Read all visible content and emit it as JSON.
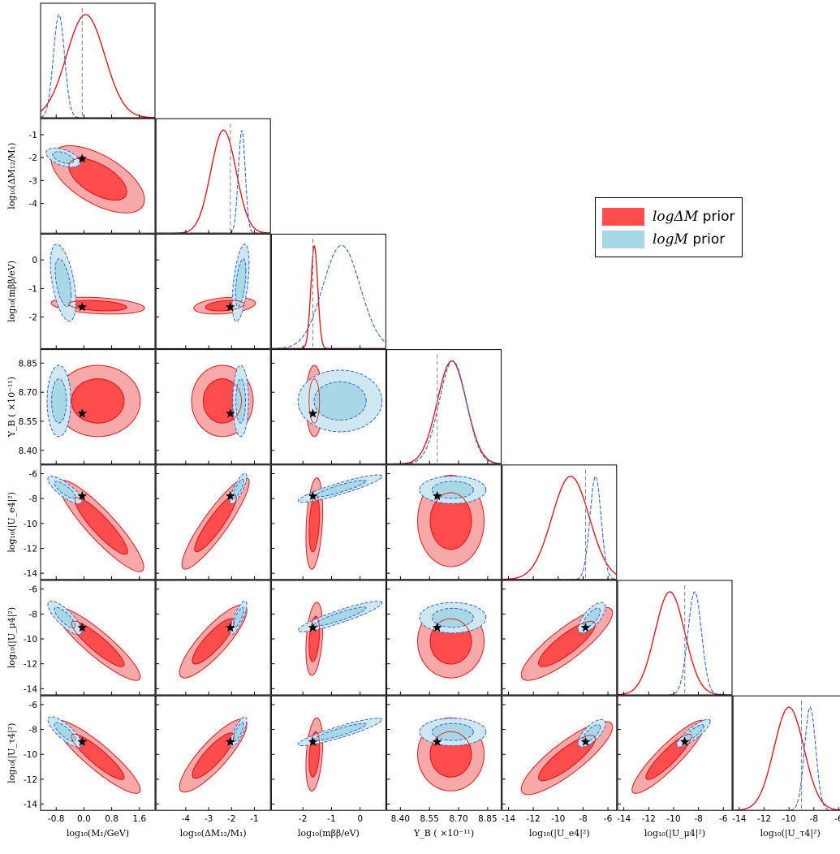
{
  "colors": {
    "red_outer": "#f7a8a8",
    "red_inner": "#ff4d4d",
    "red_line": "#e31a1c",
    "blue_outer": "#cfe7f0",
    "blue_inner": "#a8d8e6",
    "blue_line": "#3366dd",
    "truth_line": "#808080"
  },
  "legend": {
    "items": [
      {
        "math": "logΔM",
        "suffix": " prior",
        "color_key": "red_inner"
      },
      {
        "math": "logM",
        "suffix": " prior",
        "color_key": "blue_inner"
      }
    ]
  },
  "chart_data": {
    "type": "corner",
    "series": [
      {
        "name": "logΔM prior",
        "key": "red"
      },
      {
        "name": "logM prior",
        "key": "blue"
      }
    ],
    "parameters": [
      {
        "xlabel": "log₁₀(M₁/GeV)",
        "ylabel": "",
        "range": [
          -1.25,
          2.05
        ],
        "ticks": [
          "-0.8",
          "0.0",
          "0.8",
          "1.6"
        ],
        "tick_values": [
          -0.8,
          0.0,
          0.8,
          1.6
        ],
        "truth": -0.05
      },
      {
        "xlabel": "log₁₀(ΔM₁₂/M₁)",
        "ylabel": "log₁₀(ΔM₁₂/M₁)",
        "range": [
          -5.3,
          -0.3
        ],
        "ticks": [
          "-4",
          "-3",
          "-2",
          "-1"
        ],
        "tick_values": [
          -4,
          -3,
          -2,
          -1
        ],
        "truth": -2.05
      },
      {
        "xlabel": "log₁₀(mββ/eV)",
        "ylabel": "log₁₀(mββ/eV)",
        "range": [
          -3.1,
          0.9
        ],
        "ticks": [
          "-2",
          "-1",
          "0"
        ],
        "tick_values": [
          -2,
          -1,
          0
        ],
        "truth": -1.65
      },
      {
        "xlabel": "Y_B ( ×10⁻¹¹)",
        "ylabel": "Y_B ( ×10⁻¹¹)",
        "range": [
          8.33,
          8.92
        ],
        "ticks": [
          "8.40",
          "8.55",
          "8.70",
          "8.85"
        ],
        "tick_values": [
          8.4,
          8.55,
          8.7,
          8.85
        ],
        "truth": 8.59
      },
      {
        "xlabel": "log₁₀(|U_e4|²)",
        "ylabel": "log₁₀(|U_e4|²)",
        "range": [
          -14.5,
          -5.3
        ],
        "ticks": [
          "-14",
          "-12",
          "-10",
          "-8",
          "-6"
        ],
        "tick_values": [
          -14,
          -12,
          -10,
          -8,
          -6
        ],
        "truth": -7.8
      },
      {
        "xlabel": "log₁₀(|U_μ4|²)",
        "ylabel": "log₁₀(|U_μ4|²)",
        "range": [
          -14.5,
          -5.3
        ],
        "ticks": [
          "-14",
          "-12",
          "-10",
          "-8",
          "-6"
        ],
        "tick_values": [
          -14,
          -12,
          -10,
          -8,
          -6
        ],
        "truth": -9.1
      },
      {
        "xlabel": "log₁₀(|U_τ4|²)",
        "ylabel": "log₁₀(|U_τ4|²)",
        "range": [
          -14.5,
          -5.3
        ],
        "ticks": [
          "-14",
          "-12",
          "-10",
          "-8",
          "-6"
        ],
        "tick_values": [
          -14,
          -12,
          -10,
          -8,
          -6
        ],
        "truth": -9.0
      }
    ],
    "marginals": [
      {
        "red": {
          "mean": 0.05,
          "sd": 0.55
        },
        "blue": {
          "mean": -0.72,
          "sd": 0.16
        }
      },
      {
        "red": {
          "mean": -2.35,
          "sd": 0.55
        },
        "blue": {
          "mean": -1.55,
          "sd": 0.15
        }
      },
      {
        "red": {
          "mean": -1.6,
          "sd": 0.12
        },
        "blue": {
          "mean": -0.65,
          "sd": 0.65
        }
      },
      {
        "red": {
          "mean": 8.665,
          "sd": 0.075
        },
        "blue": {
          "mean": 8.67,
          "sd": 0.07
        }
      },
      {
        "red": {
          "mean": -9.0,
          "sd": 1.5
        },
        "blue": {
          "mean": -7.0,
          "sd": 0.45
        }
      },
      {
        "red": {
          "mean": -10.3,
          "sd": 1.2
        },
        "blue": {
          "mean": -8.3,
          "sd": 0.55
        }
      },
      {
        "red": {
          "mean": -10.0,
          "sd": 1.2
        },
        "blue": {
          "mean": -8.3,
          "sd": 0.45
        }
      }
    ],
    "contours": [
      {
        "row": 1,
        "col": 0,
        "red": {
          "center": [
            0.4,
            -2.95
          ],
          "sd": [
            0.55,
            0.6
          ],
          "rho": -0.6
        },
        "blue": {
          "center": [
            -0.6,
            -2.0
          ],
          "sd": [
            0.2,
            0.17
          ],
          "rho": -0.5
        }
      },
      {
        "row": 2,
        "col": 0,
        "red": {
          "center": [
            0.4,
            -1.6
          ],
          "sd": [
            0.55,
            0.12
          ],
          "rho": -0.3
        },
        "blue": {
          "center": [
            -0.6,
            -0.8
          ],
          "sd": [
            0.15,
            0.55
          ],
          "rho": -0.5
        }
      },
      {
        "row": 2,
        "col": 1,
        "red": {
          "center": [
            -2.3,
            -1.6
          ],
          "sd": [
            0.55,
            0.12
          ],
          "rho": 0.3
        },
        "blue": {
          "center": [
            -1.6,
            -0.8
          ],
          "sd": [
            0.15,
            0.55
          ],
          "rho": 0.5
        }
      },
      {
        "row": 3,
        "col": 0,
        "red": {
          "center": [
            0.4,
            8.655
          ],
          "sd": [
            0.5,
            0.075
          ],
          "rho": 0
        },
        "blue": {
          "center": [
            -0.72,
            8.655
          ],
          "sd": [
            0.14,
            0.075
          ],
          "rho": 0
        }
      },
      {
        "row": 3,
        "col": 1,
        "red": {
          "center": [
            -2.4,
            8.655
          ],
          "sd": [
            0.55,
            0.075
          ],
          "rho": 0
        },
        "blue": {
          "center": [
            -1.6,
            8.655
          ],
          "sd": [
            0.14,
            0.075
          ],
          "rho": 0
        }
      },
      {
        "row": 3,
        "col": 2,
        "red": {
          "center": [
            -1.6,
            8.655
          ],
          "sd": [
            0.12,
            0.075
          ],
          "rho": 0
        },
        "blue": {
          "center": [
            -0.7,
            8.655
          ],
          "sd": [
            0.6,
            0.065
          ],
          "rho": 0
        }
      },
      {
        "row": 4,
        "col": 0,
        "red": {
          "center": [
            0.5,
            -10.2
          ],
          "sd": [
            0.5,
            1.5
          ],
          "rho": -0.9
        },
        "blue": {
          "center": [
            -0.55,
            -7.3
          ],
          "sd": [
            0.2,
            0.45
          ],
          "rho": -0.8
        }
      },
      {
        "row": 4,
        "col": 1,
        "red": {
          "center": [
            -2.7,
            -10.0
          ],
          "sd": [
            0.6,
            1.5
          ],
          "rho": 0.9
        },
        "blue": {
          "center": [
            -1.7,
            -7.2
          ],
          "sd": [
            0.15,
            0.5
          ],
          "rho": 0.8
        }
      },
      {
        "row": 4,
        "col": 2,
        "red": {
          "center": [
            -1.6,
            -10.0
          ],
          "sd": [
            0.12,
            1.5
          ],
          "rho": 0.3
        },
        "blue": {
          "center": [
            -0.7,
            -7.2
          ],
          "sd": [
            0.6,
            0.45
          ],
          "rho": 0.9
        }
      },
      {
        "row": 4,
        "col": 3,
        "red": {
          "center": [
            8.66,
            -9.8
          ],
          "sd": [
            0.07,
            1.5
          ],
          "rho": 0
        },
        "blue": {
          "center": [
            8.67,
            -7.3
          ],
          "sd": [
            0.07,
            0.45
          ],
          "rho": 0
        }
      },
      {
        "row": 5,
        "col": 0,
        "red": {
          "center": [
            0.4,
            -10.4
          ],
          "sd": [
            0.5,
            1.2
          ],
          "rho": -0.9
        },
        "blue": {
          "center": [
            -0.55,
            -8.3
          ],
          "sd": [
            0.2,
            0.55
          ],
          "rho": -0.8
        }
      },
      {
        "row": 5,
        "col": 1,
        "red": {
          "center": [
            -2.8,
            -10.2
          ],
          "sd": [
            0.6,
            1.2
          ],
          "rho": 0.85
        },
        "blue": {
          "center": [
            -1.7,
            -8.3
          ],
          "sd": [
            0.15,
            0.55
          ],
          "rho": 0.8
        }
      },
      {
        "row": 5,
        "col": 2,
        "red": {
          "center": [
            -1.6,
            -10.0
          ],
          "sd": [
            0.12,
            1.2
          ],
          "rho": 0.3
        },
        "blue": {
          "center": [
            -0.7,
            -8.2
          ],
          "sd": [
            0.6,
            0.5
          ],
          "rho": 0.9
        }
      },
      {
        "row": 5,
        "col": 3,
        "red": {
          "center": [
            8.66,
            -10.2
          ],
          "sd": [
            0.07,
            1.2
          ],
          "rho": 0
        },
        "blue": {
          "center": [
            8.67,
            -8.3
          ],
          "sd": [
            0.07,
            0.5
          ],
          "rho": 0
        }
      },
      {
        "row": 5,
        "col": 4,
        "red": {
          "center": [
            -9.3,
            -10.4
          ],
          "sd": [
            1.5,
            1.2
          ],
          "rho": 0.85
        },
        "blue": {
          "center": [
            -7.3,
            -8.3
          ],
          "sd": [
            0.45,
            0.5
          ],
          "rho": 0.7
        }
      },
      {
        "row": 6,
        "col": 0,
        "red": {
          "center": [
            0.4,
            -10.2
          ],
          "sd": [
            0.5,
            1.2
          ],
          "rho": -0.9
        },
        "blue": {
          "center": [
            -0.55,
            -8.2
          ],
          "sd": [
            0.2,
            0.5
          ],
          "rho": -0.8
        }
      },
      {
        "row": 6,
        "col": 1,
        "red": {
          "center": [
            -2.8,
            -10.1
          ],
          "sd": [
            0.6,
            1.2
          ],
          "rho": 0.85
        },
        "blue": {
          "center": [
            -1.7,
            -8.2
          ],
          "sd": [
            0.15,
            0.5
          ],
          "rho": 0.8
        }
      },
      {
        "row": 6,
        "col": 2,
        "red": {
          "center": [
            -1.6,
            -10.0
          ],
          "sd": [
            0.12,
            1.2
          ],
          "rho": 0.3
        },
        "blue": {
          "center": [
            -0.7,
            -8.2
          ],
          "sd": [
            0.6,
            0.45
          ],
          "rho": 0.9
        }
      },
      {
        "row": 6,
        "col": 3,
        "red": {
          "center": [
            8.66,
            -10.0
          ],
          "sd": [
            0.07,
            1.2
          ],
          "rho": 0
        },
        "blue": {
          "center": [
            8.67,
            -8.2
          ],
          "sd": [
            0.07,
            0.45
          ],
          "rho": 0
        }
      },
      {
        "row": 6,
        "col": 4,
        "red": {
          "center": [
            -9.3,
            -10.3
          ],
          "sd": [
            1.5,
            1.2
          ],
          "rho": 0.85
        },
        "blue": {
          "center": [
            -7.3,
            -8.3
          ],
          "sd": [
            0.45,
            0.45
          ],
          "rho": 0.7
        }
      },
      {
        "row": 6,
        "col": 5,
        "red": {
          "center": [
            -10.4,
            -10.2
          ],
          "sd": [
            1.2,
            1.2
          ],
          "rho": 0.9
        },
        "blue": {
          "center": [
            -8.4,
            -8.3
          ],
          "sd": [
            0.55,
            0.45
          ],
          "rho": 0.85
        }
      }
    ]
  }
}
